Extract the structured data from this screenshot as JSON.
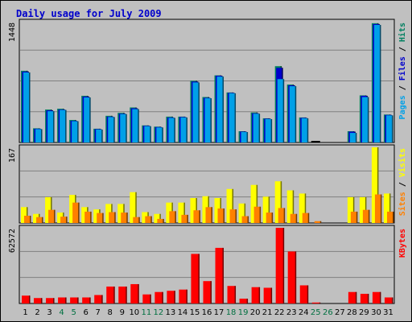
{
  "title": "Daily usage for July 2009",
  "chart_data": [
    {
      "type": "bar",
      "panel": "hits-files-pages",
      "ymax_label": "1448",
      "ylim": [
        0,
        1448
      ],
      "legend": [
        {
          "name": "Pages",
          "color": "#00a0e8"
        },
        {
          "name": "Files",
          "color": "#0000cc"
        },
        {
          "name": "Hits",
          "color": "#008060"
        }
      ],
      "categories": [
        "1",
        "2",
        "3",
        "4",
        "5",
        "6",
        "7",
        "8",
        "9",
        "10",
        "11",
        "12",
        "13",
        "14",
        "15",
        "16",
        "17",
        "18",
        "19",
        "20",
        "21",
        "22",
        "23",
        "24",
        "25",
        "26",
        "27",
        "28",
        "29",
        "30",
        "31"
      ],
      "series": [
        {
          "name": "Hits",
          "values": [
            860,
            170,
            395,
            405,
            270,
            560,
            165,
            320,
            355,
            420,
            205,
            190,
            310,
            310,
            740,
            545,
            805,
            600,
            135,
            360,
            290,
            915,
            695,
            300,
            10,
            0,
            0,
            135,
            565,
            1430,
            335
          ]
        },
        {
          "name": "Files",
          "values": [
            850,
            165,
            385,
            395,
            260,
            550,
            160,
            310,
            345,
            410,
            200,
            185,
            300,
            305,
            730,
            535,
            800,
            595,
            130,
            350,
            285,
            895,
            685,
            295,
            8,
            0,
            0,
            130,
            560,
            1420,
            330
          ]
        },
        {
          "name": "Pages",
          "values": [
            840,
            160,
            375,
            390,
            255,
            540,
            155,
            305,
            340,
            400,
            195,
            180,
            295,
            300,
            720,
            530,
            790,
            590,
            125,
            345,
            280,
            760,
            675,
            290,
            0,
            0,
            0,
            115,
            545,
            1410,
            325
          ]
        }
      ]
    },
    {
      "type": "bar",
      "panel": "visits-sites",
      "ymax_label": "167",
      "ylim": [
        0,
        167
      ],
      "legend": [
        {
          "name": "Sites",
          "color": "#ff8000"
        },
        {
          "name": "Visits",
          "color": "#ffff00"
        }
      ],
      "categories": [
        "1",
        "2",
        "3",
        "4",
        "5",
        "6",
        "7",
        "8",
        "9",
        "10",
        "11",
        "12",
        "13",
        "14",
        "15",
        "16",
        "17",
        "18",
        "19",
        "20",
        "21",
        "22",
        "23",
        "24",
        "25",
        "26",
        "27",
        "28",
        "29",
        "30",
        "31"
      ],
      "series": [
        {
          "name": "Visits",
          "values": [
            35,
            20,
            57,
            23,
            62,
            35,
            30,
            42,
            42,
            68,
            24,
            20,
            45,
            45,
            55,
            59,
            55,
            75,
            43,
            84,
            58,
            92,
            72,
            65,
            0,
            0,
            0,
            57,
            57,
            167,
            65
          ]
        },
        {
          "name": "Sites",
          "values": [
            16,
            13,
            29,
            14,
            45,
            25,
            22,
            24,
            23,
            13,
            15,
            9,
            26,
            18,
            28,
            35,
            32,
            30,
            15,
            36,
            23,
            33,
            20,
            22,
            4,
            0,
            0,
            25,
            29,
            63,
            25
          ]
        }
      ]
    },
    {
      "type": "bar",
      "panel": "kbytes",
      "ymax_label": "62572",
      "ylim": [
        0,
        62572
      ],
      "legend": [
        {
          "name": "KBytes",
          "color": "#ff0000"
        }
      ],
      "categories": [
        "1",
        "2",
        "3",
        "4",
        "5",
        "6",
        "7",
        "8",
        "9",
        "10",
        "11",
        "12",
        "13",
        "14",
        "15",
        "16",
        "17",
        "18",
        "19",
        "20",
        "21",
        "22",
        "23",
        "24",
        "25",
        "26",
        "27",
        "28",
        "29",
        "30",
        "31"
      ],
      "series": [
        {
          "name": "KBytes",
          "values": [
            6500,
            4500,
            4500,
            5000,
            5000,
            5000,
            7000,
            14000,
            14000,
            16000,
            7500,
            9500,
            10500,
            11500,
            41000,
            18500,
            46000,
            14500,
            4000,
            13500,
            13000,
            62572,
            43000,
            15000,
            800,
            0,
            0,
            9500,
            8000,
            9500,
            5000
          ]
        }
      ]
    }
  ],
  "weekend_days": [
    "4",
    "5",
    "11",
    "12",
    "18",
    "19",
    "25",
    "26"
  ],
  "colors": {
    "background": "#c0c0c0",
    "plot_bg": "#c0c0c0",
    "gridline": "#808080",
    "weekday_label": "#000000",
    "weekend_label": "#007040",
    "title": "#0000cc"
  }
}
